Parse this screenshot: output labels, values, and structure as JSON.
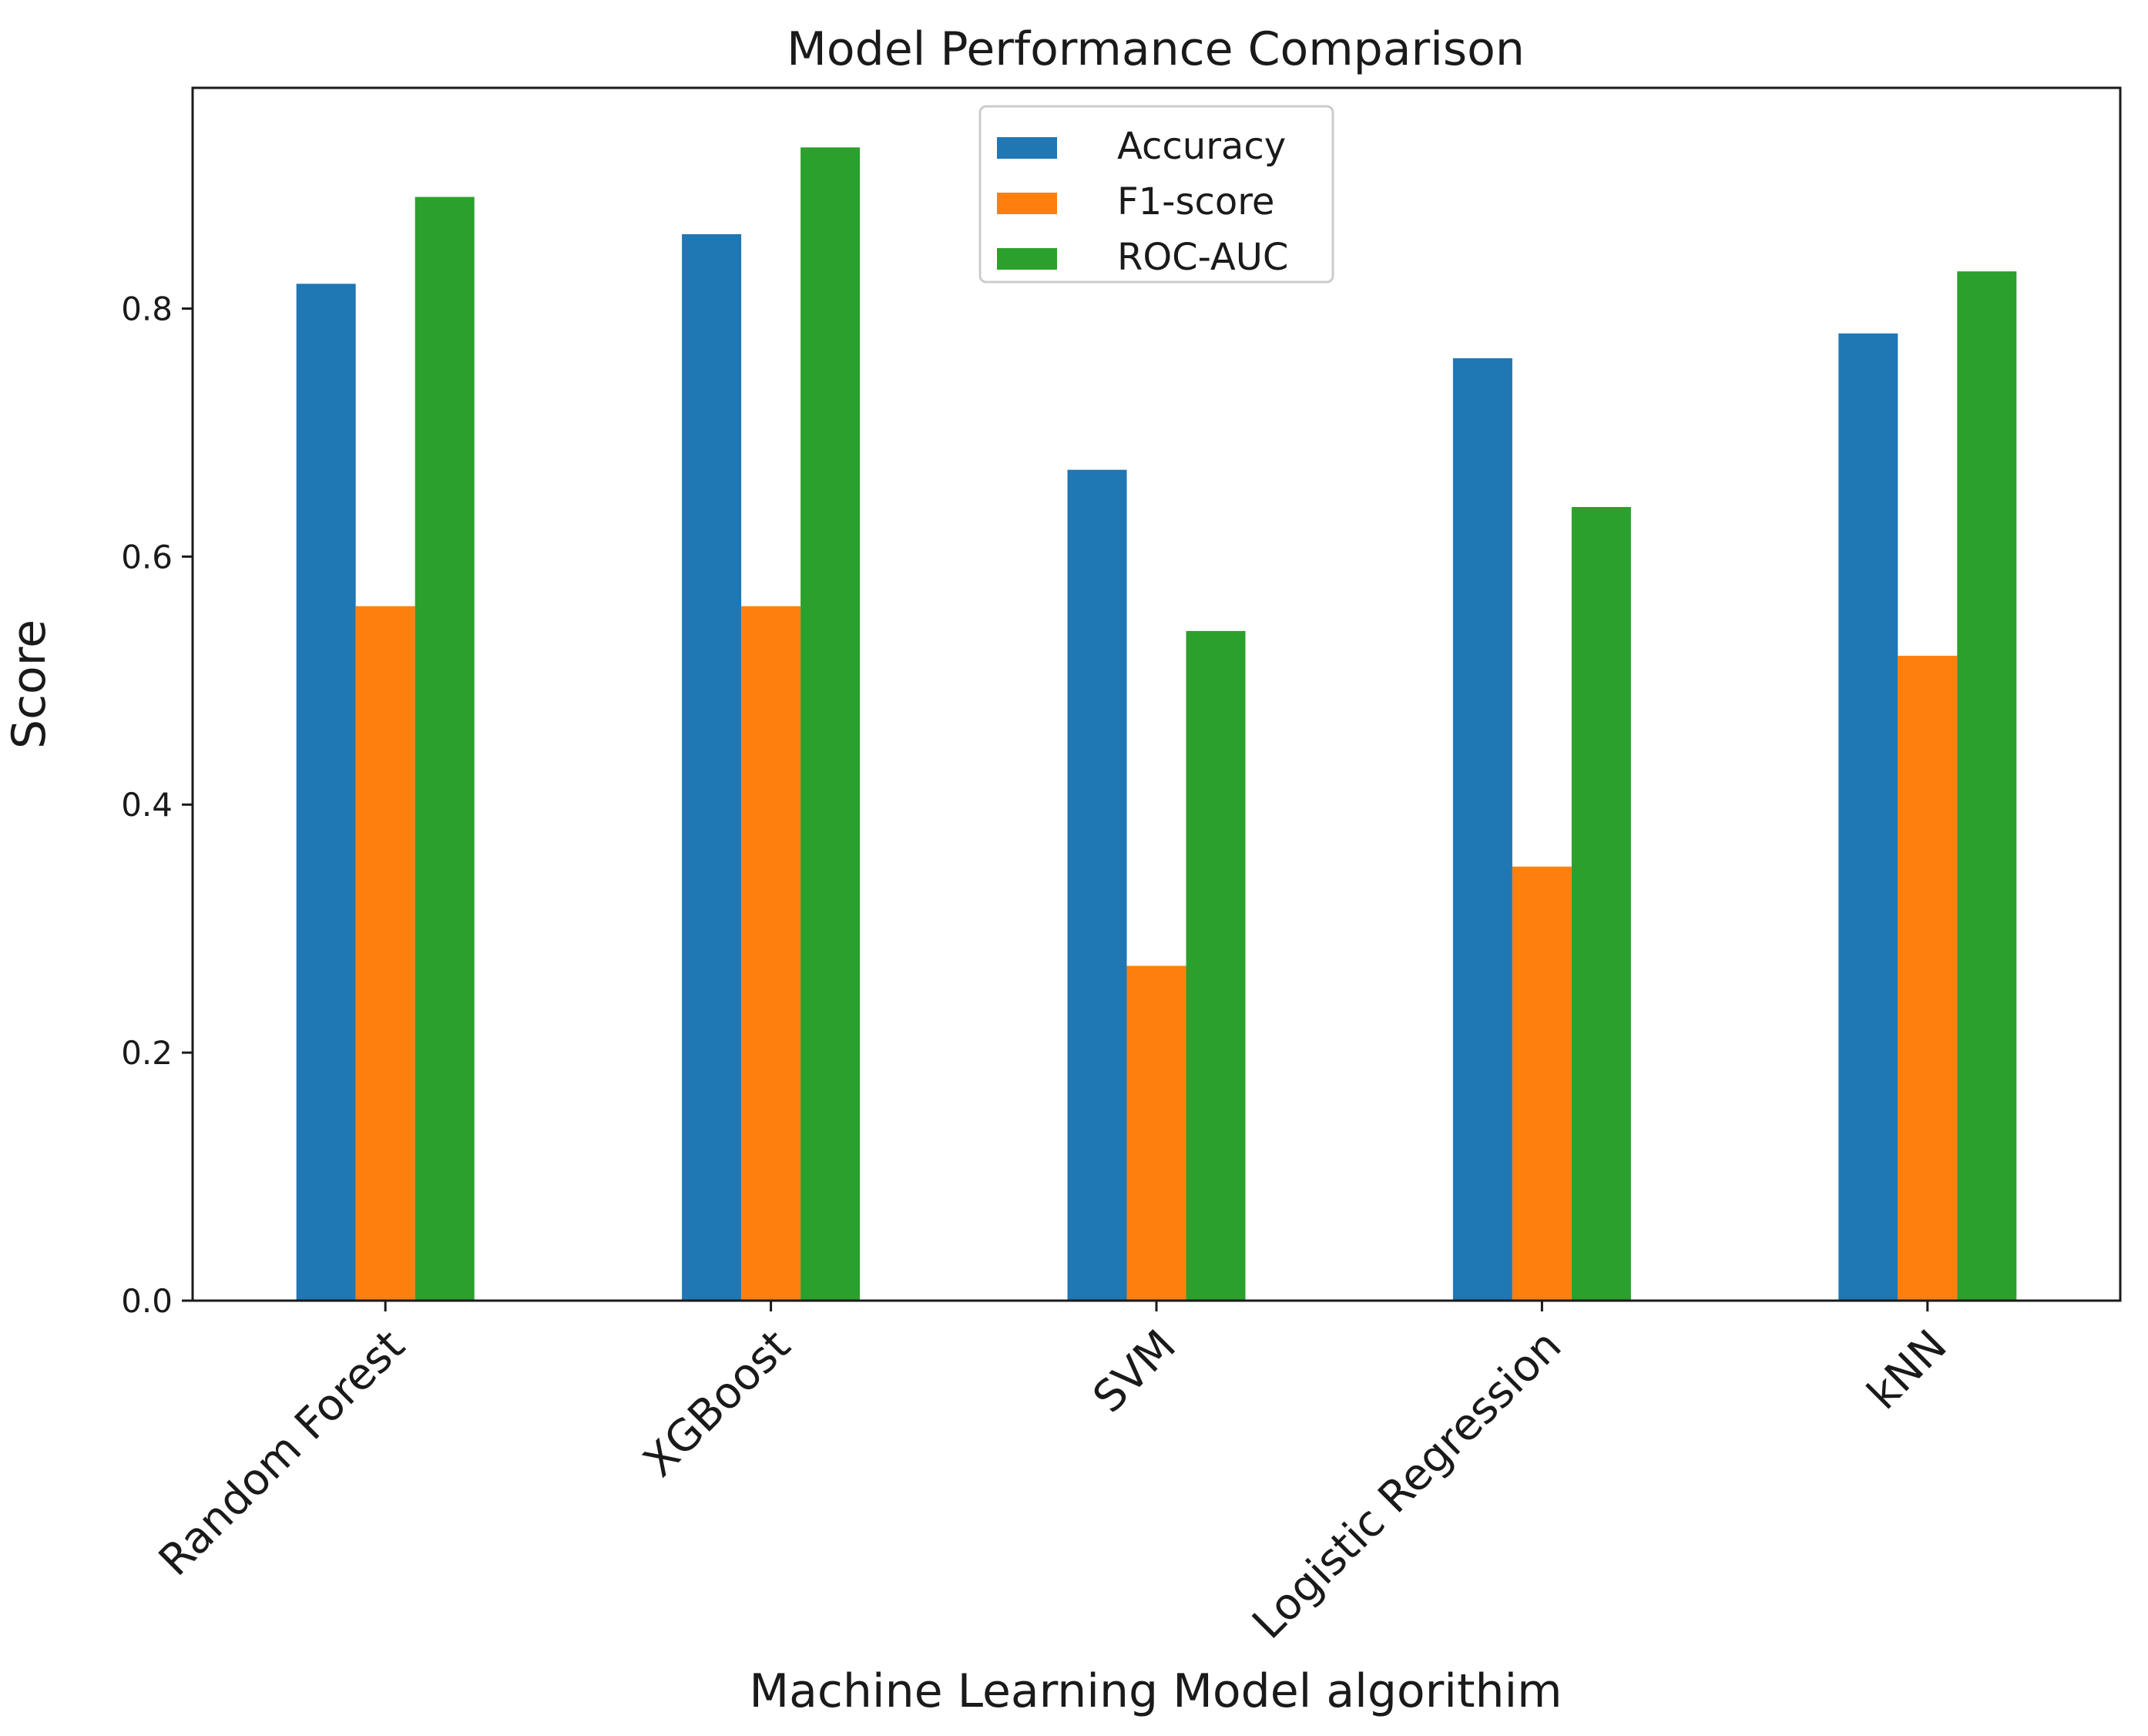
{
  "chart_data": {
    "type": "bar",
    "title": "Model Performance Comparison",
    "xlabel": "Machine Learning Model algorithim",
    "ylabel": "Score",
    "categories": [
      "Random Forest",
      "XGBoost",
      "SVM",
      "Logistic Regression",
      "kNN"
    ],
    "series": [
      {
        "name": "Accuracy",
        "color": "#1f77b4",
        "values": [
          0.82,
          0.86,
          0.67,
          0.76,
          0.78
        ]
      },
      {
        "name": "F1-score",
        "color": "#ff7f0e",
        "values": [
          0.56,
          0.56,
          0.27,
          0.35,
          0.52
        ]
      },
      {
        "name": "ROC-AUC",
        "color": "#2ca02c",
        "values": [
          0.89,
          0.93,
          0.54,
          0.64,
          0.83
        ]
      }
    ],
    "ylim": [
      0,
      0.978
    ],
    "yticks": [
      "0.0",
      "0.2",
      "0.4",
      "0.6",
      "0.8"
    ],
    "ytick_values": [
      0,
      0.2,
      0.4,
      0.6,
      0.8
    ],
    "grid": false,
    "legend_position": "top-center"
  }
}
